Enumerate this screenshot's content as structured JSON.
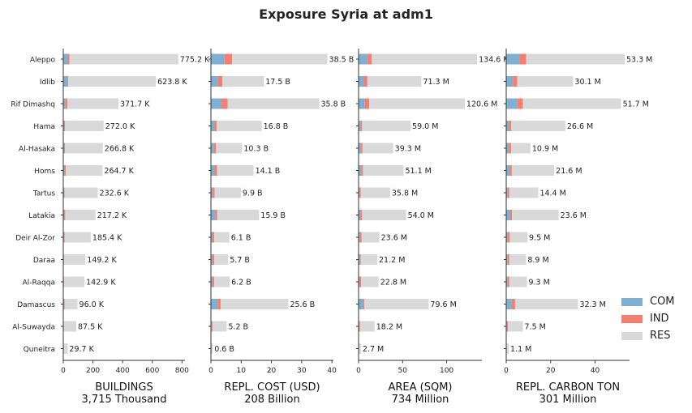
{
  "title": "Exposure Syria at adm1",
  "colors": {
    "COM": "#7fb0d1",
    "IND": "#f47f6e",
    "RES": "#d9d9d9"
  },
  "legend": [
    {
      "key": "COM",
      "label": "COM"
    },
    {
      "key": "IND",
      "label": "IND"
    },
    {
      "key": "RES",
      "label": "RES"
    }
  ],
  "chart_data": [
    {
      "type": "bar",
      "orientation": "horizontal",
      "stacked": true,
      "xlabel": "BUILDINGS",
      "subtitle": "3,715 Thousand",
      "xlim": [
        0,
        820
      ],
      "xticks": [
        0,
        200,
        400,
        600,
        800
      ],
      "categories": [
        "Aleppo",
        "Idlib",
        "Rif Dimashq",
        "Hama",
        "Al-Hasaka",
        "Homs",
        "Tartus",
        "Latakia",
        "Deir Al-Zor",
        "Daraa",
        "Al-Raqqa",
        "Damascus",
        "Al-Suwayda",
        "Quneitra"
      ],
      "series": [
        {
          "name": "COM",
          "values": [
            30,
            30,
            15,
            5,
            8,
            8,
            6,
            6,
            6,
            3,
            4,
            6,
            2,
            1
          ]
        },
        {
          "name": "IND",
          "values": [
            12,
            3,
            13,
            7,
            4,
            9,
            3,
            7,
            4,
            2,
            2,
            4,
            1,
            0.5
          ]
        },
        {
          "name": "RES",
          "values": [
            733.2,
            590.8,
            343.7,
            260,
            254.8,
            247.7,
            223.6,
            204.2,
            175.4,
            144.2,
            136.9,
            86,
            84.5,
            28.2
          ]
        }
      ],
      "labels": [
        "775.2 K",
        "623.8 K",
        "371.7 K",
        "272.0 K",
        "266.8 K",
        "264.7 K",
        "232.6 K",
        "217.2 K",
        "185.4 K",
        "149.2 K",
        "142.9 K",
        "96.0 K",
        "87.5 K",
        "29.7 K"
      ]
    },
    {
      "type": "bar",
      "orientation": "horizontal",
      "stacked": true,
      "xlabel": "REPL. COST (USD)",
      "subtitle": "208 Billion",
      "xlim": [
        0,
        40.5
      ],
      "xticks": [
        0,
        10,
        20,
        30,
        40
      ],
      "categories": [
        "Aleppo",
        "Idlib",
        "Rif Dimashq",
        "Hama",
        "Al-Hasaka",
        "Homs",
        "Tartus",
        "Latakia",
        "Deir Al-Zor",
        "Daraa",
        "Al-Raqqa",
        "Damascus",
        "Al-Suwayda",
        "Quneitra"
      ],
      "series": [
        {
          "name": "COM",
          "values": [
            4.5,
            2.3,
            3.5,
            1.2,
            1.0,
            1.2,
            0.6,
            1.5,
            0.5,
            0.5,
            0.5,
            2.2,
            0.2,
            0.05
          ]
        },
        {
          "name": "IND",
          "values": [
            2.5,
            1.5,
            2.0,
            0.7,
            0.7,
            0.8,
            0.6,
            0.6,
            0.6,
            0.6,
            0.6,
            1.0,
            0.3,
            0.05
          ]
        },
        {
          "name": "RES",
          "values": [
            31.5,
            13.7,
            30.3,
            14.9,
            8.6,
            12.1,
            8.7,
            13.8,
            5.0,
            4.6,
            5.1,
            22.4,
            4.7,
            0.5
          ]
        }
      ],
      "labels": [
        "38.5 B",
        "17.5 B",
        "35.8 B",
        "16.8 B",
        "10.3 B",
        "14.1 B",
        "9.9 B",
        "15.9 B",
        "6.1 B",
        "5.7 B",
        "6.2 B",
        "25.6 B",
        "5.2 B",
        "0.6 B"
      ]
    },
    {
      "type": "bar",
      "orientation": "horizontal",
      "stacked": true,
      "xlabel": "AREA (SQM)",
      "subtitle": "734 Million",
      "xlim": [
        0,
        140
      ],
      "xticks": [
        0,
        50,
        100
      ],
      "categories": [
        "Aleppo",
        "Idlib",
        "Rif Dimashq",
        "Hama",
        "Al-Hasaka",
        "Homs",
        "Tartus",
        "Latakia",
        "Deir Al-Zor",
        "Daraa",
        "Al-Raqqa",
        "Damascus",
        "Al-Suwayda",
        "Quneitra"
      ],
      "series": [
        {
          "name": "COM",
          "values": [
            10,
            6,
            7,
            2.5,
            2.5,
            3,
            1,
            2,
            1.5,
            1.5,
            1,
            5,
            0.5,
            0.1
          ]
        },
        {
          "name": "IND",
          "values": [
            5,
            4,
            5,
            1.5,
            2,
            2,
            1.5,
            2,
            2,
            1,
            2,
            1.5,
            1,
            0.1
          ]
        },
        {
          "name": "RES",
          "values": [
            119.6,
            61.3,
            108.6,
            55,
            34.8,
            46.1,
            33.3,
            50,
            20.1,
            18.7,
            19.8,
            73.1,
            16.7,
            2.5
          ]
        }
      ],
      "labels": [
        "134.6 M",
        "71.3 M",
        "120.6 M",
        "59.0 M",
        "39.3 M",
        "51.1 M",
        "35.8 M",
        "54.0 M",
        "23.6 M",
        "21.2 M",
        "22.8 M",
        "79.6 M",
        "18.2 M",
        "2.7 M"
      ]
    },
    {
      "type": "bar",
      "orientation": "horizontal",
      "stacked": true,
      "xlabel": "REPL. CARBON TON",
      "subtitle": "301 Million",
      "xlim": [
        0,
        55.5
      ],
      "xticks": [
        0,
        20,
        40
      ],
      "categories": [
        "Aleppo",
        "Idlib",
        "Rif Dimashq",
        "Hama",
        "Al-Hasaka",
        "Homs",
        "Tartus",
        "Latakia",
        "Deir Al-Zor",
        "Daraa",
        "Al-Raqqa",
        "Damascus",
        "Al-Suwayda",
        "Quneitra"
      ],
      "series": [
        {
          "name": "COM",
          "values": [
            6,
            3,
            5,
            1.2,
            1.2,
            1.5,
            0.6,
            1.8,
            0.6,
            0.6,
            0.6,
            2.5,
            0.3,
            0.05
          ]
        },
        {
          "name": "IND",
          "values": [
            3,
            2,
            2.5,
            1,
            1,
            1,
            0.8,
            0.8,
            1,
            0.8,
            0.8,
            1.5,
            0.5,
            0.05
          ]
        },
        {
          "name": "RES",
          "values": [
            44.3,
            25.1,
            44.2,
            24.4,
            8.7,
            19.1,
            13,
            21,
            7.9,
            7.5,
            7.9,
            28.3,
            6.7,
            1.0
          ]
        }
      ],
      "labels": [
        "53.3 M",
        "30.1 M",
        "51.7 M",
        "26.6 M",
        "10.9 M",
        "21.6 M",
        "14.4 M",
        "23.6 M",
        "9.5 M",
        "8.9 M",
        "9.3 M",
        "32.3 M",
        "7.5 M",
        "1.1 M"
      ]
    }
  ]
}
